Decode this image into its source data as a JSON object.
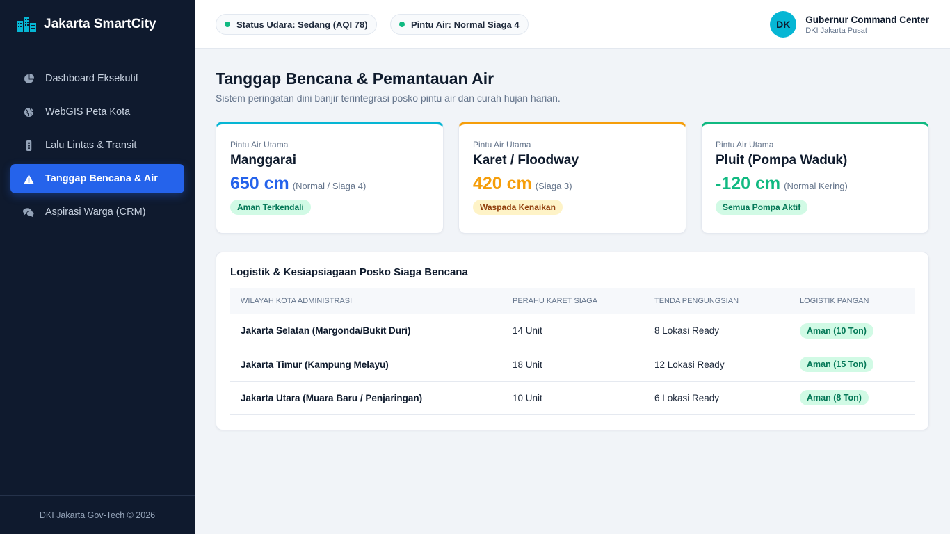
{
  "brand": {
    "name": "Jakarta SmartCity",
    "icon": "city-buildings-icon",
    "accent": "#06b6d4"
  },
  "sidebar": {
    "items": [
      {
        "label": "Dashboard Eksekutif",
        "icon": "pie-chart-icon",
        "active": false
      },
      {
        "label": "WebGIS Peta Kota",
        "icon": "globe-icon",
        "active": false
      },
      {
        "label": "Lalu Lintas & Transit",
        "icon": "traffic-light-icon",
        "active": false
      },
      {
        "label": "Tanggap Bencana & Air",
        "icon": "warning-icon",
        "active": true
      },
      {
        "label": "Aspirasi Warga (CRM)",
        "icon": "comments-icon",
        "active": false
      }
    ],
    "footer": "DKI Jakarta Gov-Tech © 2026"
  },
  "topbar": {
    "status_air": "Status Udara: Sedang (AQI 78)",
    "status_water": "Pintu Air: Normal Siaga 4",
    "user": {
      "initials": "DK",
      "name": "Gubernur Command Center",
      "sub": "DKI Jakarta Pusat"
    }
  },
  "page": {
    "title": "Tanggap Bencana & Pemantauan Air",
    "subtitle": "Sistem peringatan dini banjir terintegrasi posko pintu air dan curah hujan harian."
  },
  "cards": [
    {
      "label": "Pintu Air Utama",
      "name": "Manggarai",
      "value": "650 cm",
      "note": "(Normal / Siaga 4)",
      "badge": "Aman Terkendali",
      "color": "#2563eb",
      "border": "#06b6d4",
      "badge_bg": "#d1fae5",
      "badge_fg": "#047857"
    },
    {
      "label": "Pintu Air Utama",
      "name": "Karet / Floodway",
      "value": "420 cm",
      "note": "(Siaga 3)",
      "badge": "Waspada Kenaikan",
      "color": "#f59e0b",
      "border": "#f59e0b",
      "badge_bg": "#fef3c7",
      "badge_fg": "#92400e"
    },
    {
      "label": "Pintu Air Utama",
      "name": "Pluit (Pompa Waduk)",
      "value": "-120 cm",
      "note": "(Normal Kering)",
      "badge": "Semua Pompa Aktif",
      "color": "#10b981",
      "border": "#10b981",
      "badge_bg": "#d1fae5",
      "badge_fg": "#047857"
    }
  ],
  "logistics": {
    "title": "Logistik & Kesiapsiagaan Posko Siaga Bencana",
    "headers": [
      "WILAYAH KOTA ADMINISTRASI",
      "PERAHU KARET SIAGA",
      "TENDA PENGUNGSIAN",
      "LOGISTIK PANGAN"
    ],
    "rows": [
      {
        "region": "Jakarta Selatan (Margonda/Bukit Duri)",
        "boats": "14 Unit",
        "tents": "8 Lokasi Ready",
        "food": "Aman (10 Ton)"
      },
      {
        "region": "Jakarta Timur (Kampung Melayu)",
        "boats": "18 Unit",
        "tents": "12 Lokasi Ready",
        "food": "Aman (15 Ton)"
      },
      {
        "region": "Jakarta Utara (Muara Baru / Penjaringan)",
        "boats": "10 Unit",
        "tents": "6 Lokasi Ready",
        "food": "Aman (8 Ton)"
      }
    ]
  }
}
